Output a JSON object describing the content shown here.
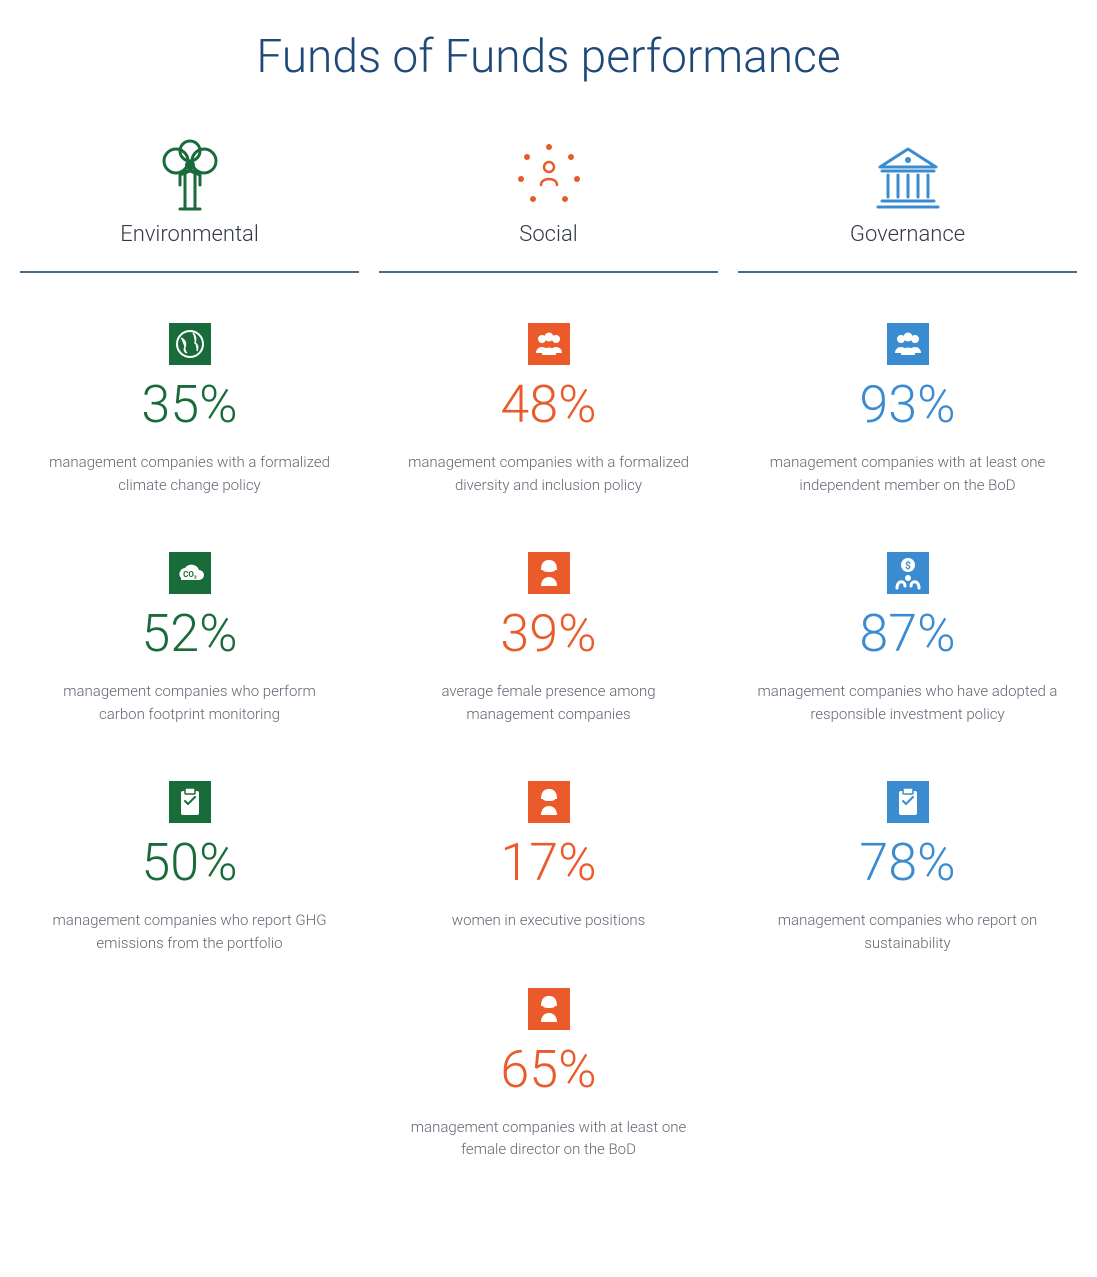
{
  "title": "Funds of Funds performance",
  "title_color": "#1e4a7a",
  "columns": [
    {
      "key": "environmental",
      "label": "Environmental",
      "color": "#1a6b3a",
      "header_icon": "tree-person",
      "metrics": [
        {
          "icon": "globe",
          "value": "35%",
          "desc": "management companies with a formalized climate change policy"
        },
        {
          "icon": "co2-cloud",
          "value": "52%",
          "desc": "management companies who perform carbon footprint monitoring"
        },
        {
          "icon": "clipboard",
          "value": "50%",
          "desc": "management companies who report GHG emissions from the portfolio"
        }
      ]
    },
    {
      "key": "social",
      "label": "Social",
      "color": "#ea5a2a",
      "header_icon": "people-network",
      "metrics": [
        {
          "icon": "group",
          "value": "48%",
          "desc": "management companies with a formalized diversity and inclusion policy"
        },
        {
          "icon": "woman",
          "value": "39%",
          "desc": "average female presence among management companies"
        },
        {
          "icon": "woman",
          "value": "17%",
          "desc": "women in executive positions"
        },
        {
          "icon": "woman",
          "value": "65%",
          "desc": "management companies with at least one female director on the BoD"
        }
      ]
    },
    {
      "key": "governance",
      "label": "Governance",
      "color": "#3b8bd1",
      "header_icon": "building",
      "metrics": [
        {
          "icon": "group",
          "value": "93%",
          "desc": "management companies with at least one independent member on the BoD"
        },
        {
          "icon": "money-person",
          "value": "87%",
          "desc": "management companies who have adopted a responsible investment policy"
        },
        {
          "icon": "clipboard",
          "value": "78%",
          "desc": "management companies who report on sustainability"
        }
      ]
    }
  ],
  "rule_color": "#4a6a8a"
}
